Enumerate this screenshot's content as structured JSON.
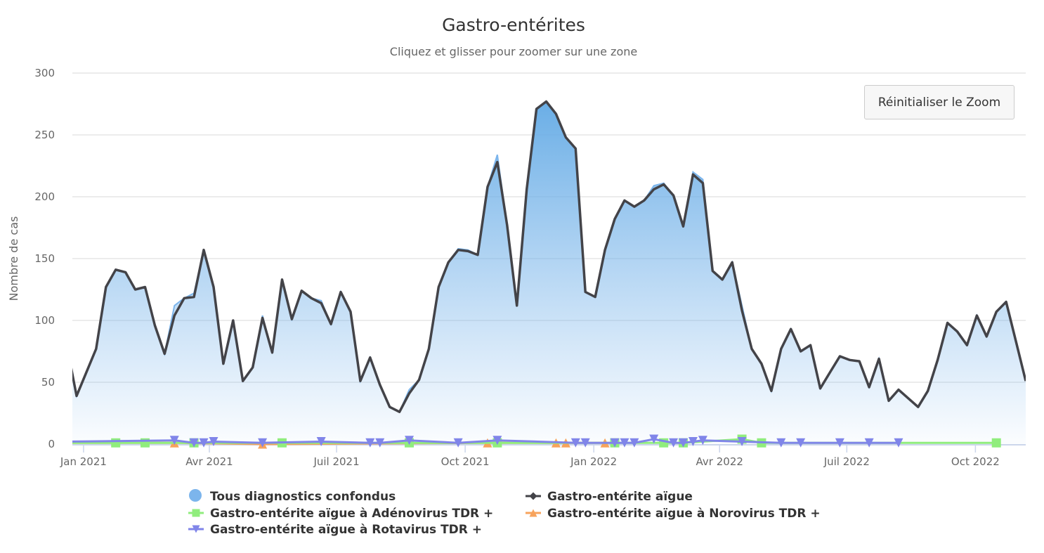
{
  "chart_data": {
    "type": "area",
    "title": "Gastro-entérites",
    "subtitle": "Cliquez et glisser pour zoomer sur une zone",
    "xlabel": "",
    "ylabel": "Nombre de cas",
    "ylim": [
      0,
      300
    ],
    "yticks": [
      0,
      50,
      100,
      150,
      200,
      250,
      300
    ],
    "xlim": [
      "2020-12-24",
      "2022-11-06"
    ],
    "xticks": [
      {
        "date": "2021-01-01",
        "label": "Jan 2021"
      },
      {
        "date": "2021-04-01",
        "label": "Avr 2021"
      },
      {
        "date": "2021-07-01",
        "label": "Juil 2021"
      },
      {
        "date": "2021-10-01",
        "label": "Oct 2021"
      },
      {
        "date": "2022-01-01",
        "label": "Jan 2022"
      },
      {
        "date": "2022-04-01",
        "label": "Avr 2022"
      },
      {
        "date": "2022-07-01",
        "label": "Juil 2022"
      },
      {
        "date": "2022-10-01",
        "label": "Oct 2022"
      }
    ],
    "grid": true,
    "legend_position": "bottom",
    "x": [
      "2020-12-20",
      "2020-12-27",
      "2021-01-03",
      "2021-01-10",
      "2021-01-17",
      "2021-01-24",
      "2021-01-31",
      "2021-02-07",
      "2021-02-14",
      "2021-02-21",
      "2021-02-28",
      "2021-03-07",
      "2021-03-14",
      "2021-03-21",
      "2021-03-28",
      "2021-04-04",
      "2021-04-11",
      "2021-04-18",
      "2021-04-25",
      "2021-05-02",
      "2021-05-09",
      "2021-05-16",
      "2021-05-23",
      "2021-05-30",
      "2021-06-06",
      "2021-06-13",
      "2021-06-20",
      "2021-06-27",
      "2021-07-04",
      "2021-07-11",
      "2021-07-18",
      "2021-07-25",
      "2021-08-01",
      "2021-08-08",
      "2021-08-15",
      "2021-08-22",
      "2021-08-29",
      "2021-09-05",
      "2021-09-12",
      "2021-09-19",
      "2021-09-26",
      "2021-10-03",
      "2021-10-10",
      "2021-10-17",
      "2021-10-24",
      "2021-10-31",
      "2021-11-07",
      "2021-11-14",
      "2021-11-21",
      "2021-11-28",
      "2021-12-05",
      "2021-12-12",
      "2021-12-19",
      "2021-12-26",
      "2022-01-02",
      "2022-01-09",
      "2022-01-16",
      "2022-01-23",
      "2022-01-30",
      "2022-02-06",
      "2022-02-13",
      "2022-02-20",
      "2022-02-27",
      "2022-03-06",
      "2022-03-13",
      "2022-03-20",
      "2022-03-27",
      "2022-04-03",
      "2022-04-10",
      "2022-04-17",
      "2022-04-24",
      "2022-05-01",
      "2022-05-08",
      "2022-05-15",
      "2022-05-22",
      "2022-05-29",
      "2022-06-05",
      "2022-06-12",
      "2022-06-19",
      "2022-06-26",
      "2022-07-03",
      "2022-07-10",
      "2022-07-17",
      "2022-07-24",
      "2022-07-31",
      "2022-08-07",
      "2022-08-14",
      "2022-08-21",
      "2022-08-28",
      "2022-09-04",
      "2022-09-11",
      "2022-09-18",
      "2022-09-25",
      "2022-10-02",
      "2022-10-09",
      "2022-10-16",
      "2022-10-23",
      "2022-10-30",
      "2022-11-06"
    ],
    "series": [
      {
        "name": "Tous diagnostics confondus",
        "kind": "area",
        "color": "#7cb5ec",
        "marker": "circle",
        "values": [
          80,
          39,
          58,
          77,
          127,
          141,
          139,
          125,
          127,
          96,
          73,
          112,
          118,
          122,
          157,
          127,
          65,
          100,
          51,
          62,
          104,
          74,
          133,
          101,
          124,
          118,
          116,
          97,
          123,
          107,
          51,
          70,
          48,
          30,
          26,
          44,
          52,
          77,
          127,
          147,
          158,
          157,
          153,
          208,
          234,
          177,
          112,
          206,
          271,
          277,
          267,
          248,
          239,
          123,
          119,
          157,
          182,
          197,
          192,
          197,
          209,
          211,
          201,
          176,
          220,
          214,
          140,
          133,
          147,
          112,
          77,
          65,
          43,
          77,
          93,
          75,
          80,
          45,
          58,
          71,
          68,
          67,
          46,
          69,
          35,
          44,
          37,
          30,
          43,
          68,
          98,
          91,
          80,
          104,
          87,
          107,
          115,
          83,
          51
        ]
      },
      {
        "name": "Gastro-entérite aïgue",
        "kind": "line",
        "color": "#434348",
        "marker": "diamond",
        "values": [
          80,
          39,
          58,
          77,
          127,
          141,
          139,
          125,
          127,
          96,
          73,
          104,
          118,
          119,
          157,
          127,
          65,
          100,
          51,
          62,
          102,
          74,
          133,
          101,
          124,
          118,
          114,
          97,
          123,
          107,
          51,
          70,
          48,
          30,
          26,
          41,
          52,
          77,
          127,
          147,
          157,
          156,
          153,
          208,
          228,
          177,
          112,
          206,
          271,
          277,
          267,
          248,
          239,
          123,
          119,
          157,
          182,
          197,
          192,
          197,
          206,
          210,
          201,
          176,
          218,
          211,
          140,
          133,
          147,
          108,
          77,
          65,
          43,
          77,
          93,
          75,
          80,
          45,
          58,
          71,
          68,
          67,
          46,
          69,
          35,
          44,
          37,
          30,
          43,
          68,
          98,
          91,
          80,
          104,
          87,
          107,
          115,
          83,
          51
        ]
      },
      {
        "name": "Gastro-entérite aïgue à Adénovirus TDR +",
        "kind": "sparse",
        "color": "#90ed7d",
        "marker": "square",
        "points": [
          [
            "2020-12-20",
            1
          ],
          [
            "2021-01-24",
            1
          ],
          [
            "2021-02-14",
            1
          ],
          [
            "2021-03-21",
            1
          ],
          [
            "2021-05-23",
            1
          ],
          [
            "2021-08-22",
            1
          ],
          [
            "2021-10-24",
            1
          ],
          [
            "2022-01-16",
            1
          ],
          [
            "2022-02-20",
            1
          ],
          [
            "2022-03-06",
            1
          ],
          [
            "2022-04-17",
            4
          ],
          [
            "2022-05-01",
            1
          ],
          [
            "2022-10-16",
            1
          ]
        ]
      },
      {
        "name": "Gastro-entérite aïgue à Norovirus TDR +",
        "kind": "sparse",
        "color": "#f7a35c",
        "marker": "triangle",
        "points": [
          [
            "2020-12-20",
            1
          ],
          [
            "2021-03-07",
            1
          ],
          [
            "2021-05-09",
            0
          ],
          [
            "2021-10-17",
            1
          ],
          [
            "2021-12-05",
            1
          ],
          [
            "2021-12-12",
            1
          ],
          [
            "2022-01-09",
            1
          ]
        ]
      },
      {
        "name": "Gastro-entérite aïgue à Rotavirus TDR +",
        "kind": "sparse",
        "color": "#8085e9",
        "marker": "triangle-down",
        "points": [
          [
            "2020-12-20",
            2
          ],
          [
            "2021-03-07",
            3
          ],
          [
            "2021-03-21",
            1
          ],
          [
            "2021-03-28",
            1
          ],
          [
            "2021-04-04",
            2
          ],
          [
            "2021-05-09",
            1
          ],
          [
            "2021-06-20",
            2
          ],
          [
            "2021-07-25",
            1
          ],
          [
            "2021-08-01",
            1
          ],
          [
            "2021-08-22",
            3
          ],
          [
            "2021-09-26",
            1
          ],
          [
            "2021-10-24",
            3
          ],
          [
            "2021-12-19",
            1
          ],
          [
            "2021-12-26",
            1
          ],
          [
            "2022-01-16",
            1
          ],
          [
            "2022-01-23",
            1
          ],
          [
            "2022-01-30",
            1
          ],
          [
            "2022-02-13",
            4
          ],
          [
            "2022-02-27",
            1
          ],
          [
            "2022-03-06",
            1
          ],
          [
            "2022-03-13",
            2
          ],
          [
            "2022-03-20",
            3
          ],
          [
            "2022-04-17",
            2
          ],
          [
            "2022-05-15",
            1
          ],
          [
            "2022-05-29",
            1
          ],
          [
            "2022-06-26",
            1
          ],
          [
            "2022-07-17",
            1
          ],
          [
            "2022-08-07",
            1
          ]
        ]
      }
    ],
    "legend_order": [
      0,
      1,
      2,
      3,
      4
    ]
  },
  "toolbar": {
    "reset_zoom_label": "Réinitialiser le Zoom"
  }
}
